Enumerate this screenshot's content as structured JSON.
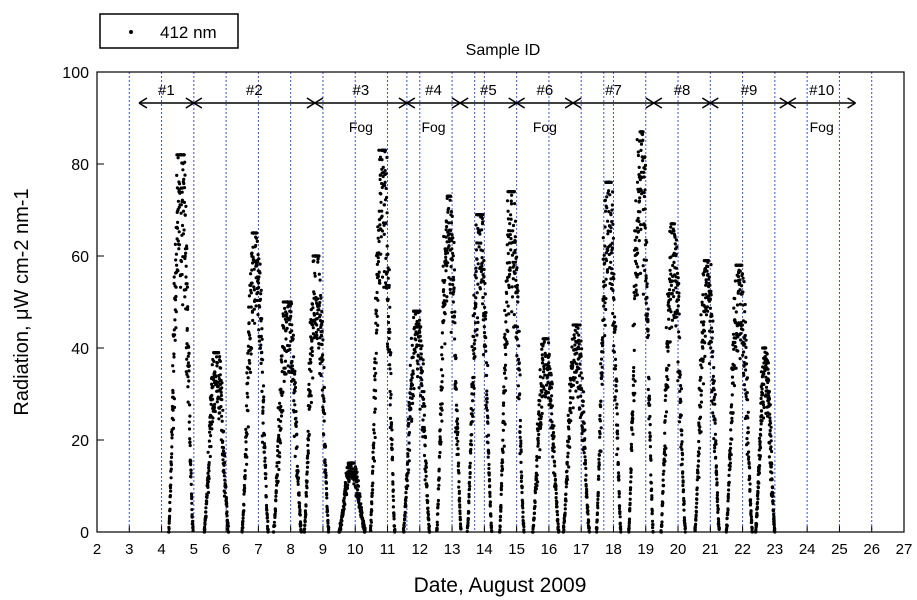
{
  "chart_data": {
    "type": "scatter",
    "title": "Sample ID",
    "xlabel": "Date, August 2009",
    "ylabel": "Radiation, μW cm-2 nm-1",
    "xlim": [
      2,
      27
    ],
    "ylim": [
      0,
      100
    ],
    "x_ticks": [
      "2",
      "3",
      "4",
      "5",
      "6",
      "7",
      "8",
      "9",
      "10",
      "11",
      "12",
      "13",
      "14",
      "15",
      "16",
      "17",
      "18",
      "19",
      "20",
      "21",
      "22",
      "23",
      "24",
      "25",
      "26",
      "27"
    ],
    "y_ticks": [
      "0",
      "20",
      "40",
      "60",
      "80",
      "100"
    ],
    "grid": "vertical dashed blue lines at sample boundaries",
    "legend": {
      "position": "top-left",
      "entries": [
        {
          "marker": "dot",
          "label": "412 nm"
        }
      ]
    },
    "series": [
      {
        "name": "412 nm",
        "marker": "dot",
        "color": "#000000"
      }
    ],
    "sample_boundaries_x": [
      3,
      4,
      5,
      6,
      7,
      8,
      9,
      10,
      11,
      11.6,
      12,
      13,
      13.7,
      14,
      15,
      16,
      17,
      17.7,
      18,
      19,
      20,
      21,
      22,
      23,
      24,
      25,
      26
    ],
    "samples": [
      {
        "label": "#1",
        "start": 3.3,
        "end": 5.0,
        "fog": false
      },
      {
        "label": "#2",
        "start": 5.0,
        "end": 8.75,
        "fog": false
      },
      {
        "label": "#3",
        "start": 8.75,
        "end": 11.6,
        "fog": true
      },
      {
        "label": "#4",
        "start": 11.6,
        "end": 13.25,
        "fog": true
      },
      {
        "label": "#5",
        "start": 13.25,
        "end": 15.0,
        "fog": false
      },
      {
        "label": "#6",
        "start": 15.0,
        "end": 16.75,
        "fog": true
      },
      {
        "label": "#7",
        "start": 16.75,
        "end": 19.25,
        "fog": false
      },
      {
        "label": "#8",
        "start": 19.25,
        "end": 21.0,
        "fog": false
      },
      {
        "label": "#9",
        "start": 21.0,
        "end": 23.4,
        "fog": false
      },
      {
        "label": "#10",
        "start": 23.4,
        "end": 25.5,
        "fog": true
      }
    ],
    "fog_label": "Fog",
    "daily_peaks": [
      {
        "day": 4.6,
        "peak": 82,
        "width": 0.28
      },
      {
        "day": 5.7,
        "peak": 39,
        "width": 0.28
      },
      {
        "day": 6.9,
        "peak": 65,
        "width": 0.3
      },
      {
        "day": 7.9,
        "peak": 50,
        "width": 0.32
      },
      {
        "day": 8.8,
        "peak": 60,
        "width": 0.28
      },
      {
        "day": 9.9,
        "peak": 15,
        "width": 0.3
      },
      {
        "day": 10.85,
        "peak": 83,
        "width": 0.28
      },
      {
        "day": 11.9,
        "peak": 48,
        "width": 0.3
      },
      {
        "day": 12.9,
        "peak": 73,
        "width": 0.28
      },
      {
        "day": 13.85,
        "peak": 69,
        "width": 0.28
      },
      {
        "day": 14.85,
        "peak": 74,
        "width": 0.28
      },
      {
        "day": 15.9,
        "peak": 42,
        "width": 0.3
      },
      {
        "day": 16.85,
        "peak": 45,
        "width": 0.3
      },
      {
        "day": 17.85,
        "peak": 76,
        "width": 0.28
      },
      {
        "day": 18.85,
        "peak": 87,
        "width": 0.28
      },
      {
        "day": 19.85,
        "peak": 67,
        "width": 0.28
      },
      {
        "day": 20.9,
        "peak": 59,
        "width": 0.28
      },
      {
        "day": 21.9,
        "peak": 58,
        "width": 0.3
      },
      {
        "day": 22.7,
        "peak": 40,
        "width": 0.22
      }
    ]
  }
}
